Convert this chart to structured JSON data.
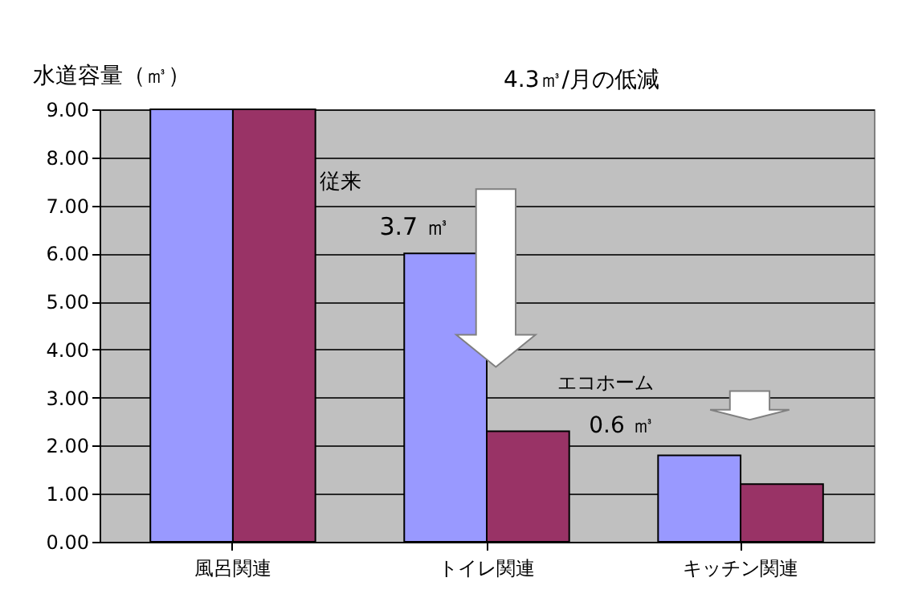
{
  "chart_data": {
    "type": "bar",
    "ylabel": "水道容量（㎥）",
    "categories": [
      "風呂関連",
      "トイレ関連",
      "キッチン関連"
    ],
    "series": [
      {
        "color": "#9999ff",
        "values": [
          9.0,
          6.0,
          1.8
        ]
      },
      {
        "color": "#993366",
        "values": [
          9.0,
          2.3,
          1.2
        ]
      }
    ],
    "ylim": [
      0,
      9
    ],
    "yticks": [
      {
        "value": 0,
        "label": "0.00"
      },
      {
        "value": 1,
        "label": "1.00"
      },
      {
        "value": 2,
        "label": "2.00"
      },
      {
        "value": 3,
        "label": "3.00"
      },
      {
        "value": 4,
        "label": "4.00"
      },
      {
        "value": 5,
        "label": "5.00"
      },
      {
        "value": 6,
        "label": "6.00"
      },
      {
        "value": 7,
        "label": "7.00"
      },
      {
        "value": 8,
        "label": "8.00"
      },
      {
        "value": 9,
        "label": "9.00"
      }
    ],
    "grid": "y",
    "annotations": [
      "4.3㎥/月の低減",
      "従来",
      "3.7 ㎥",
      "エコホーム",
      "0.6 ㎥"
    ]
  }
}
